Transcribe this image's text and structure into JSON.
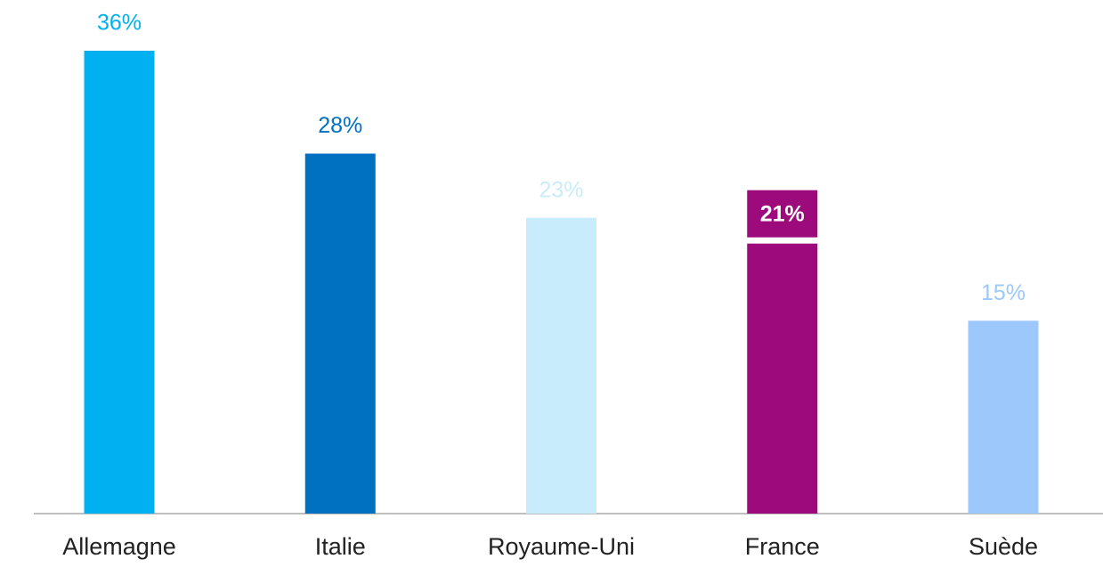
{
  "chart_data": {
    "type": "bar",
    "categories": [
      "Allemagne",
      "Italie",
      "Royaume-Uni",
      "France",
      "Suède"
    ],
    "values": [
      36,
      28,
      23,
      21,
      15
    ],
    "value_labels": [
      "36%",
      "28%",
      "23%",
      "21%",
      "15%"
    ],
    "colors": [
      "#00b0f0",
      "#0070c0",
      "#c9ecfc",
      "#9c0a7c",
      "#9dc8fb"
    ],
    "ylim": [
      0,
      36
    ]
  }
}
